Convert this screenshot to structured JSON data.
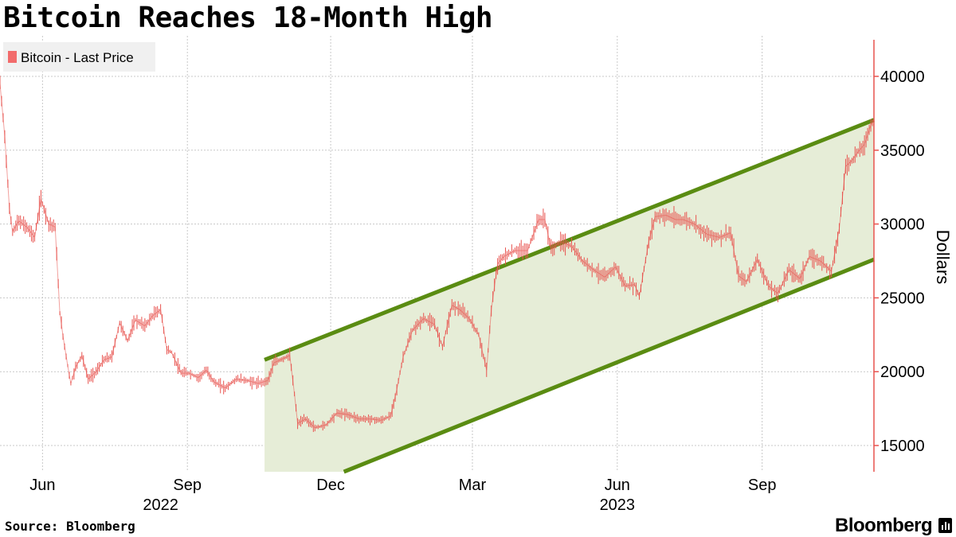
{
  "title": "Bitcoin Reaches 18-Month High",
  "source": "Source: Bloomberg",
  "brand": "Bloomberg",
  "brand_icon": "bloomberg-terminal-icon",
  "colors": {
    "price": "#e8534f",
    "legend_swatch": "#f26b6b",
    "channel_line": "#5a8c12",
    "channel_fill": "#e6edd7",
    "grid": "#c8c8c8",
    "axis": "#e8534f",
    "legend_bg": "#f0f0f0"
  },
  "chart_data": {
    "type": "line",
    "style": "ohlc-bars",
    "legend": {
      "position": "top-left",
      "entries": [
        "Bitcoin - Last Price"
      ]
    },
    "ylabel": "Dollars",
    "ylim": [
      13000,
      42500
    ],
    "yticks": [
      15000,
      20000,
      25000,
      30000,
      35000,
      40000
    ],
    "x_range": [
      "2022-05-05",
      "2023-11-11"
    ],
    "xticks": [
      {
        "date": "2022-06-01",
        "label": "Jun"
      },
      {
        "date": "2022-09-01",
        "label": "Sep"
      },
      {
        "date": "2022-12-01",
        "label": "Dec"
      },
      {
        "date": "2023-03-01",
        "label": "Mar"
      },
      {
        "date": "2023-06-01",
        "label": "Jun"
      },
      {
        "date": "2023-09-01",
        "label": "Sep"
      }
    ],
    "year_labels": [
      {
        "date": "2022-08-15",
        "label": "2022"
      },
      {
        "date": "2023-06-01",
        "label": "2023"
      }
    ],
    "grid": true,
    "series": [
      {
        "name": "Bitcoin - Last Price",
        "x": [
          "2022-05-05",
          "2022-05-08",
          "2022-05-11",
          "2022-05-13",
          "2022-05-17",
          "2022-05-22",
          "2022-05-27",
          "2022-05-31",
          "2022-06-05",
          "2022-06-09",
          "2022-06-12",
          "2022-06-14",
          "2022-06-17",
          "2022-06-19",
          "2022-06-22",
          "2022-06-26",
          "2022-06-30",
          "2022-07-05",
          "2022-07-10",
          "2022-07-15",
          "2022-07-20",
          "2022-07-25",
          "2022-07-30",
          "2022-08-05",
          "2022-08-10",
          "2022-08-15",
          "2022-08-19",
          "2022-08-22",
          "2022-08-28",
          "2022-09-02",
          "2022-09-08",
          "2022-09-13",
          "2022-09-18",
          "2022-09-25",
          "2022-10-02",
          "2022-10-09",
          "2022-10-16",
          "2022-10-22",
          "2022-10-26",
          "2022-10-30",
          "2022-11-05",
          "2022-11-08",
          "2022-11-10",
          "2022-11-15",
          "2022-11-21",
          "2022-11-28",
          "2022-12-05",
          "2022-12-12",
          "2022-12-19",
          "2022-12-26",
          "2023-01-02",
          "2023-01-08",
          "2023-01-12",
          "2023-01-16",
          "2023-01-22",
          "2023-01-29",
          "2023-02-05",
          "2023-02-10",
          "2023-02-16",
          "2023-02-21",
          "2023-02-27",
          "2023-03-05",
          "2023-03-10",
          "2023-03-13",
          "2023-03-17",
          "2023-03-21",
          "2023-03-28",
          "2023-04-05",
          "2023-04-12",
          "2023-04-16",
          "2023-04-20",
          "2023-04-26",
          "2023-05-03",
          "2023-05-10",
          "2023-05-17",
          "2023-05-24",
          "2023-05-31",
          "2023-06-06",
          "2023-06-12",
          "2023-06-15",
          "2023-06-21",
          "2023-06-25",
          "2023-07-02",
          "2023-07-08",
          "2023-07-13",
          "2023-07-20",
          "2023-07-28",
          "2023-08-05",
          "2023-08-12",
          "2023-08-17",
          "2023-08-22",
          "2023-08-29",
          "2023-09-05",
          "2023-09-11",
          "2023-09-18",
          "2023-09-25",
          "2023-10-01",
          "2023-10-08",
          "2023-10-15",
          "2023-10-20",
          "2023-10-24",
          "2023-10-28",
          "2023-11-01",
          "2023-11-05",
          "2023-11-09",
          "2023-11-11"
        ],
        "values": [
          39500,
          36000,
          31000,
          29500,
          30200,
          29800,
          29100,
          31700,
          30000,
          29800,
          24000,
          22400,
          20400,
          19200,
          20300,
          21100,
          19500,
          20000,
          20800,
          21000,
          23300,
          22100,
          23500,
          23100,
          23800,
          24200,
          21500,
          21300,
          19900,
          19900,
          19600,
          20100,
          19300,
          18900,
          19500,
          19400,
          19200,
          19400,
          20600,
          20800,
          21100,
          18500,
          16500,
          16800,
          16200,
          16400,
          17200,
          17100,
          16800,
          16800,
          16700,
          17000,
          18800,
          21000,
          22800,
          23600,
          23200,
          21700,
          24500,
          24200,
          23600,
          22500,
          20100,
          24200,
          27300,
          27800,
          28200,
          28200,
          30300,
          30300,
          28300,
          28800,
          28500,
          27500,
          26900,
          26400,
          27100,
          25800,
          25900,
          25100,
          28800,
          30500,
          30600,
          30300,
          30300,
          30000,
          29300,
          29100,
          29400,
          26500,
          26100,
          27600,
          25800,
          25300,
          26900,
          26300,
          27800,
          27500,
          26800,
          29700,
          33900,
          34300,
          34900,
          35400,
          36700,
          37100
        ]
      }
    ],
    "channel": {
      "upper": {
        "x": [
          "2022-10-20",
          "2023-11-11"
        ],
        "y": [
          20800,
          37050
        ]
      },
      "lower": {
        "x": [
          "2022-10-20",
          "2023-11-11"
        ],
        "y": [
          11070,
          27600
        ]
      }
    }
  }
}
